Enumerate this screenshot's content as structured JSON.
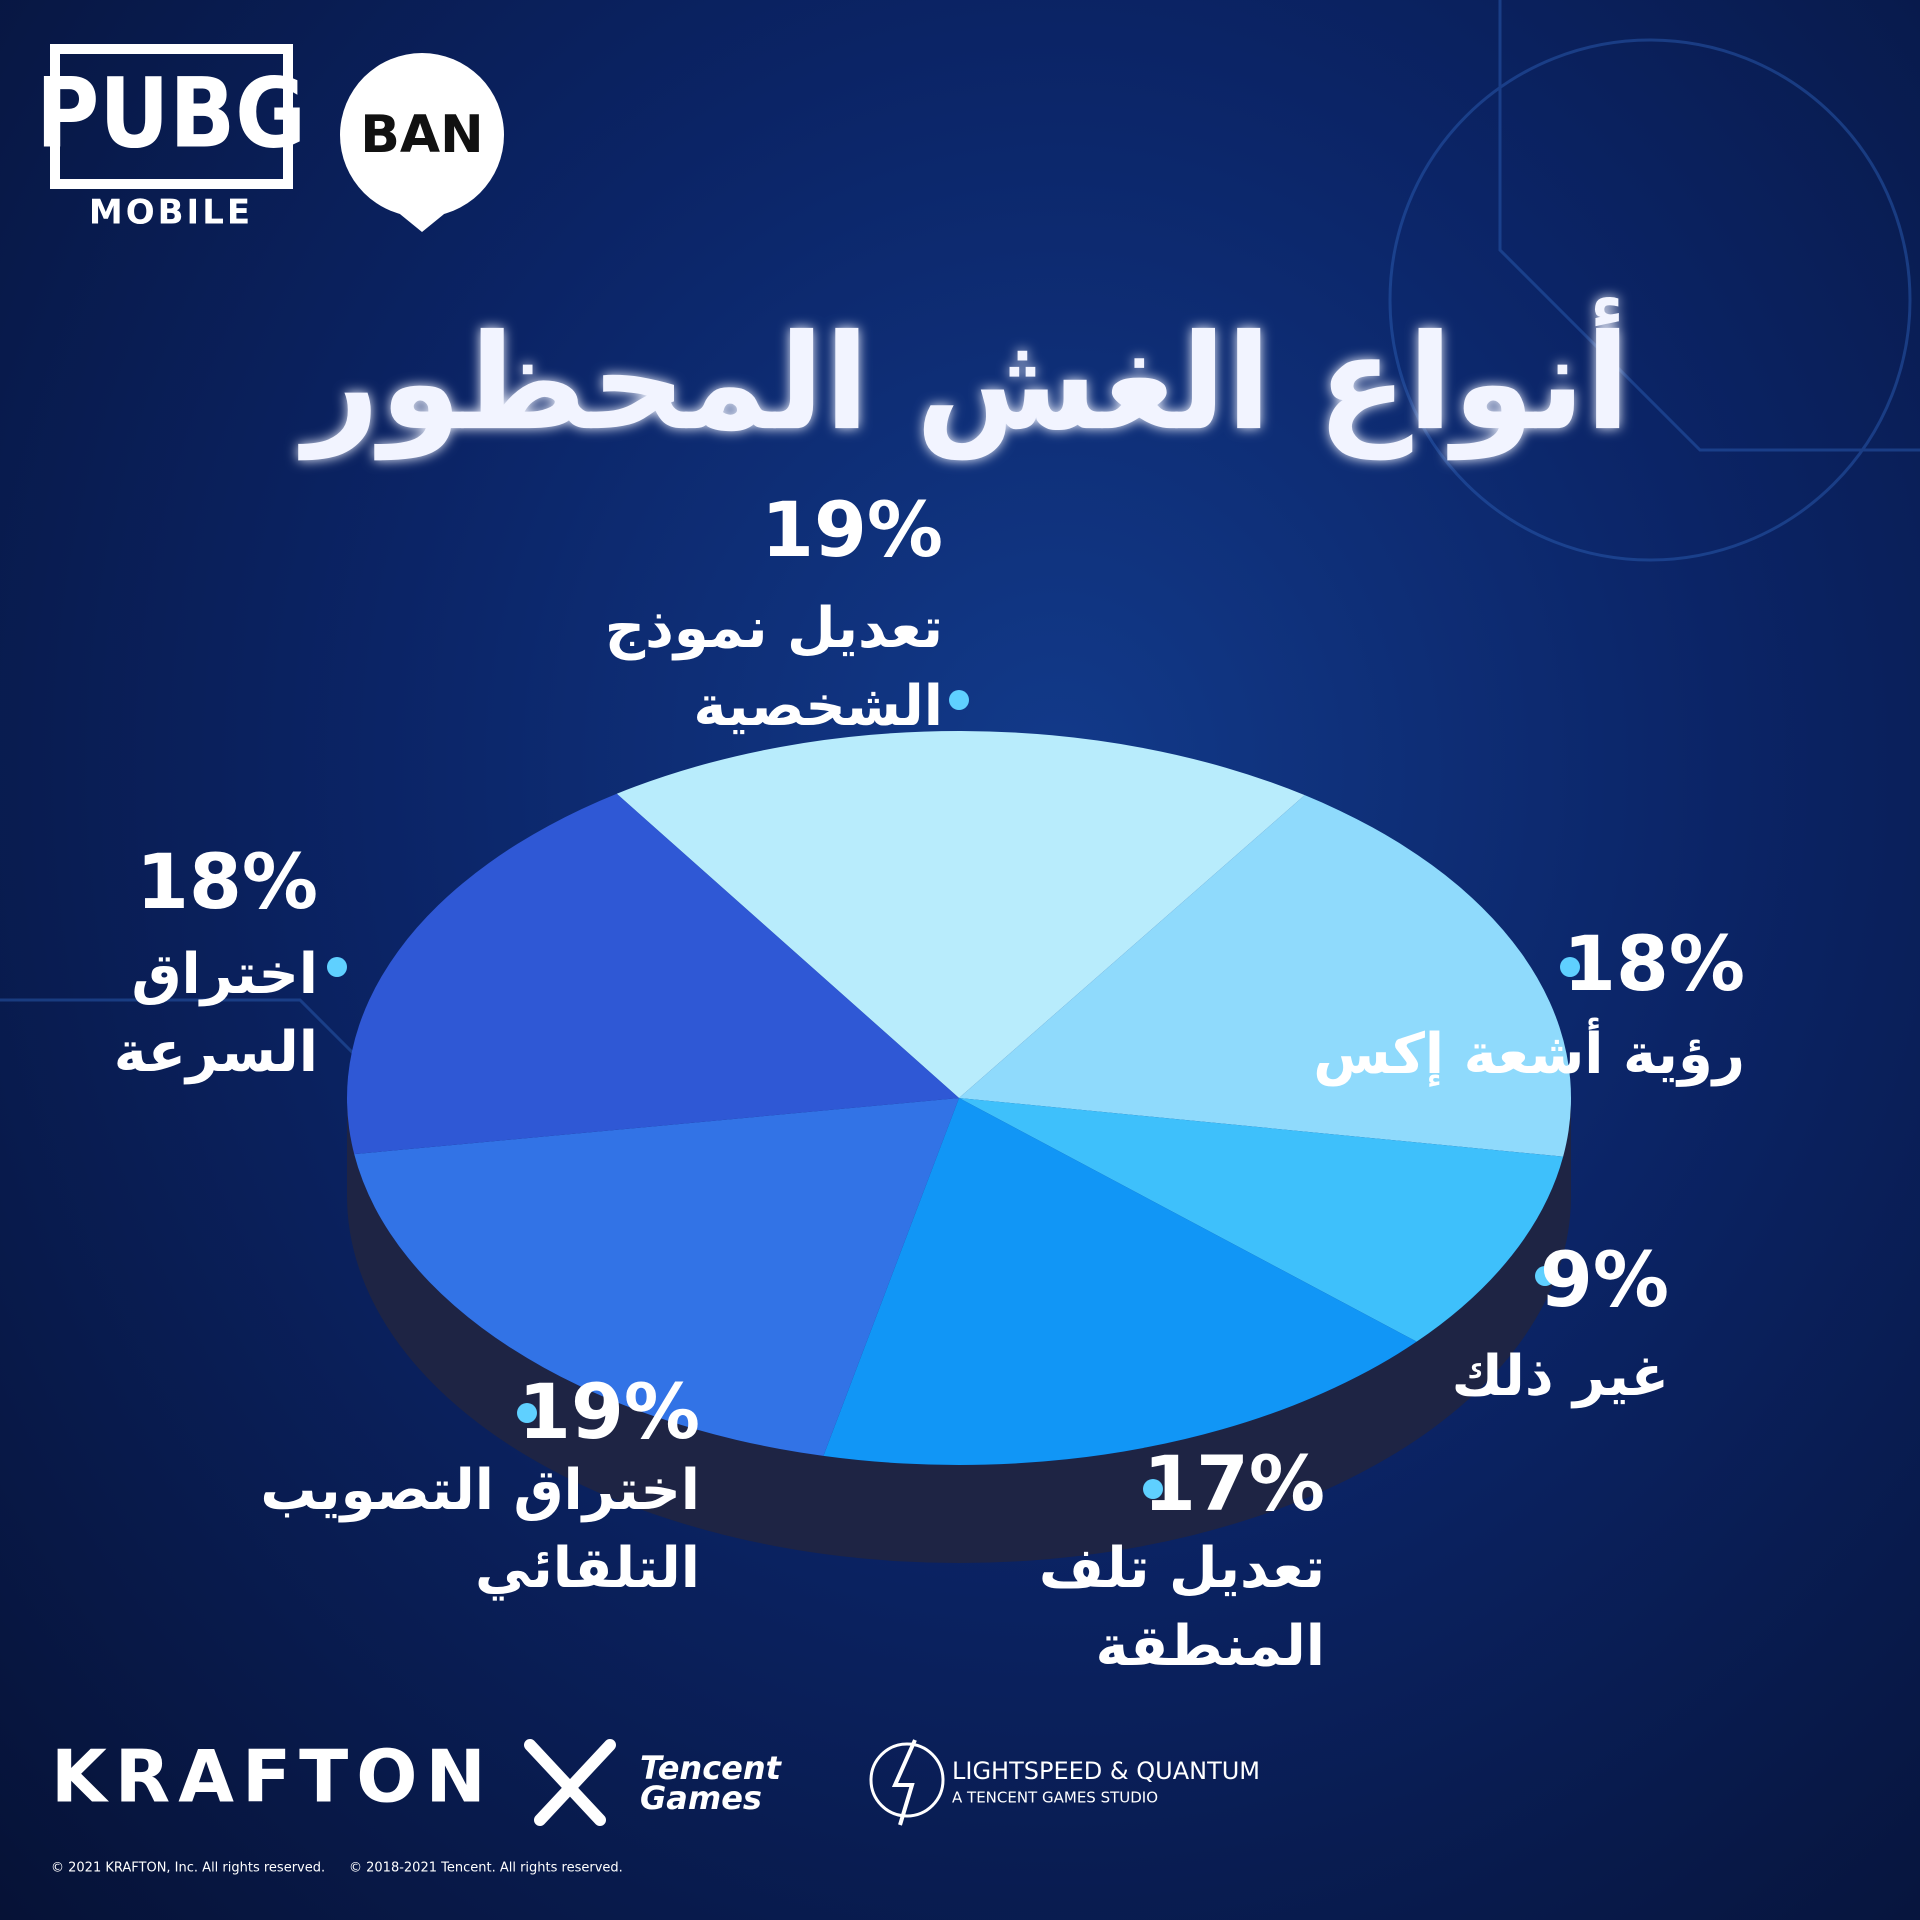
{
  "chart_data": {
    "type": "pie",
    "title": "أنواع الغش المحظور",
    "categories": [
      "تعديل نموذج الشخصية",
      "رؤية أشعة إكس",
      "غير ذلك",
      "تعديل تلف المنطقة",
      "اختراق التصويب التلقائي",
      "اختراق السرعة"
    ],
    "values": [
      19,
      18,
      9,
      17,
      19,
      18
    ],
    "value_labels": [
      "19%",
      "18%",
      "9%",
      "17%",
      "19%",
      "18%"
    ],
    "colors": [
      "#b8ecfc",
      "#8fdafc",
      "#3ec0fb",
      "#1196f6",
      "#3273e6",
      "#2f58d5"
    ]
  },
  "logos": {
    "pubg": "PUBG",
    "mobile": "MOBILE",
    "ban": "BAN",
    "krafton": "KRAFTON",
    "tencent": "Tencent",
    "games": "Games",
    "lightspeed": "LIGHTSPEED & QUANTUM",
    "studio": "A TENCENT GAMES STUDIO"
  },
  "copyright": [
    "© 2021 KRAFTON, Inc. All rights reserved.",
    "© 2018-2021 Tencent. All rights reserved."
  ]
}
